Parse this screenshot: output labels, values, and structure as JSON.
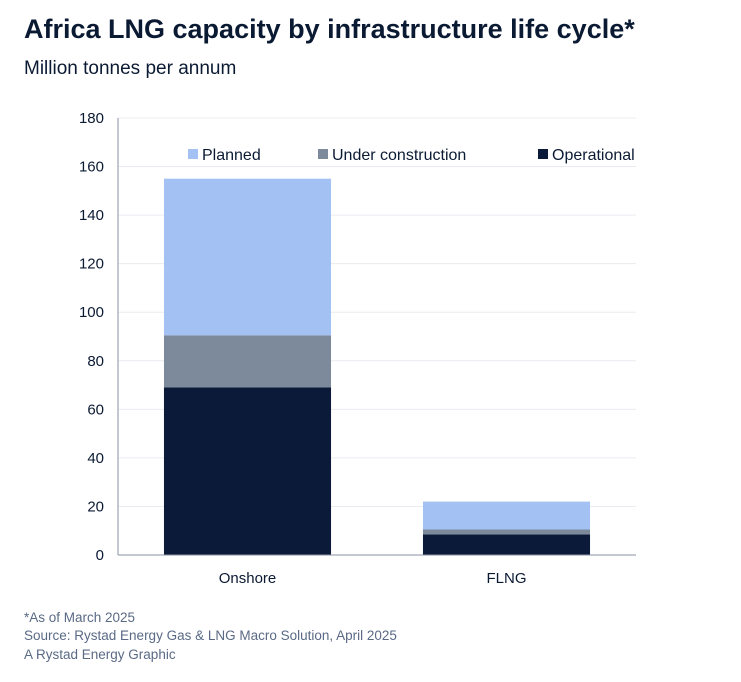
{
  "title": "Africa LNG capacity by infrastructure life cycle*",
  "subtitle": "Million tonnes per annum",
  "footer": {
    "note": "*As of March 2025",
    "source": "Source: Rystad Energy Gas & LNG Macro Solution, April 2025",
    "credit": "A Rystad Energy Graphic"
  },
  "chart_data": {
    "type": "bar",
    "stacked": true,
    "categories": [
      "Onshore",
      "FLNG"
    ],
    "series": [
      {
        "name": "Operational",
        "values": [
          69,
          8.5
        ],
        "color": "#0b1a38"
      },
      {
        "name": "Under construction",
        "values": [
          21.5,
          2
        ],
        "color": "#7c8a9c"
      },
      {
        "name": "Planned",
        "values": [
          64.5,
          11.5
        ],
        "color": "#a3c1f2"
      }
    ],
    "legend_order": [
      "Planned",
      "Under construction",
      "Operational"
    ],
    "legend_position": "top",
    "ylim": [
      0,
      180
    ],
    "yticks": [
      0,
      20,
      40,
      60,
      80,
      100,
      120,
      140,
      160,
      180
    ],
    "grid": true,
    "xlabel": "",
    "ylabel": ""
  }
}
